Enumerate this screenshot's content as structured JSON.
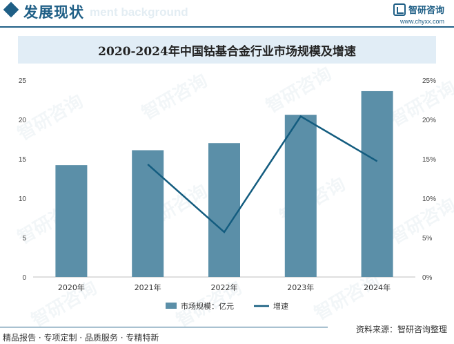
{
  "header": {
    "section_title": "发展现状",
    "ghost_title": "ment background",
    "brand_name": "智研咨询",
    "brand_url": "www.chyxx.com"
  },
  "chart_data": {
    "type": "bar",
    "title": "2020-2024年中国钴基合金行业市场规模及增速",
    "categories": [
      "2020年",
      "2021年",
      "2022年",
      "2023年",
      "2024年"
    ],
    "series": [
      {
        "name": "市场规模：亿元",
        "type": "bar",
        "axis": "left",
        "values": [
          14.2,
          16.1,
          17.0,
          20.6,
          23.6
        ],
        "color": "#5b8fa8"
      },
      {
        "name": "增速",
        "type": "line",
        "axis": "right",
        "values": [
          null,
          14.3,
          5.7,
          20.4,
          14.7
        ],
        "color": "#135c7f"
      }
    ],
    "yleft": {
      "min": 0,
      "max": 25,
      "ticks": [
        "0",
        "5",
        "10",
        "15",
        "20",
        "25"
      ]
    },
    "yright": {
      "min": 0,
      "max": 25,
      "ticks": [
        "0%",
        "5%",
        "10%",
        "15%",
        "20%",
        "25%"
      ]
    },
    "grid": false,
    "legend": "bottom"
  },
  "footer": {
    "left": "精品报告 · 专项定制 · 品质服务 · 专精特新",
    "right": "资料来源：智研咨询整理"
  },
  "watermark": "智研咨询"
}
